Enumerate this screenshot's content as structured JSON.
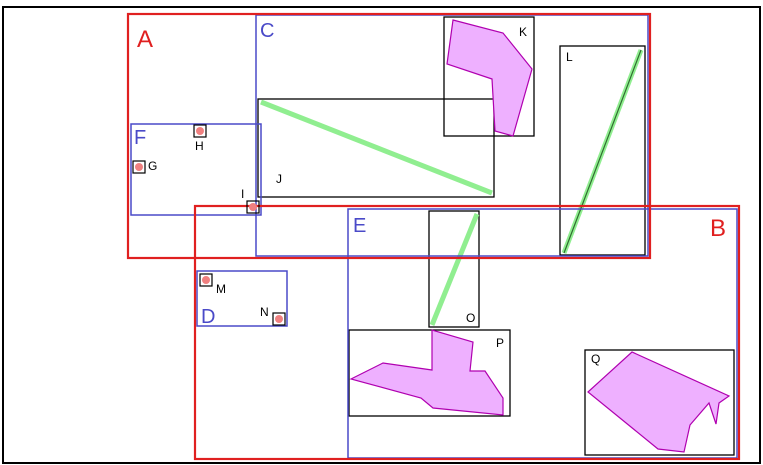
{
  "diagram": {
    "colors": {
      "red": "#e02020",
      "blue": "#4a4ac8",
      "black": "#000000",
      "green": "#90ee90",
      "dark_green": "#2f6f2f",
      "shape_fill": "#eeb0ff",
      "shape_stroke": "#b000b0",
      "point_fill": "#f08080"
    },
    "labels": {
      "A": "A",
      "B": "B",
      "C": "C",
      "D": "D",
      "E": "E",
      "F": "F",
      "G": "G",
      "H": "H",
      "I": "I",
      "J": "J",
      "K": "K",
      "L": "L",
      "M": "M",
      "N": "N",
      "O": "O",
      "P": "P",
      "Q": "Q"
    }
  }
}
